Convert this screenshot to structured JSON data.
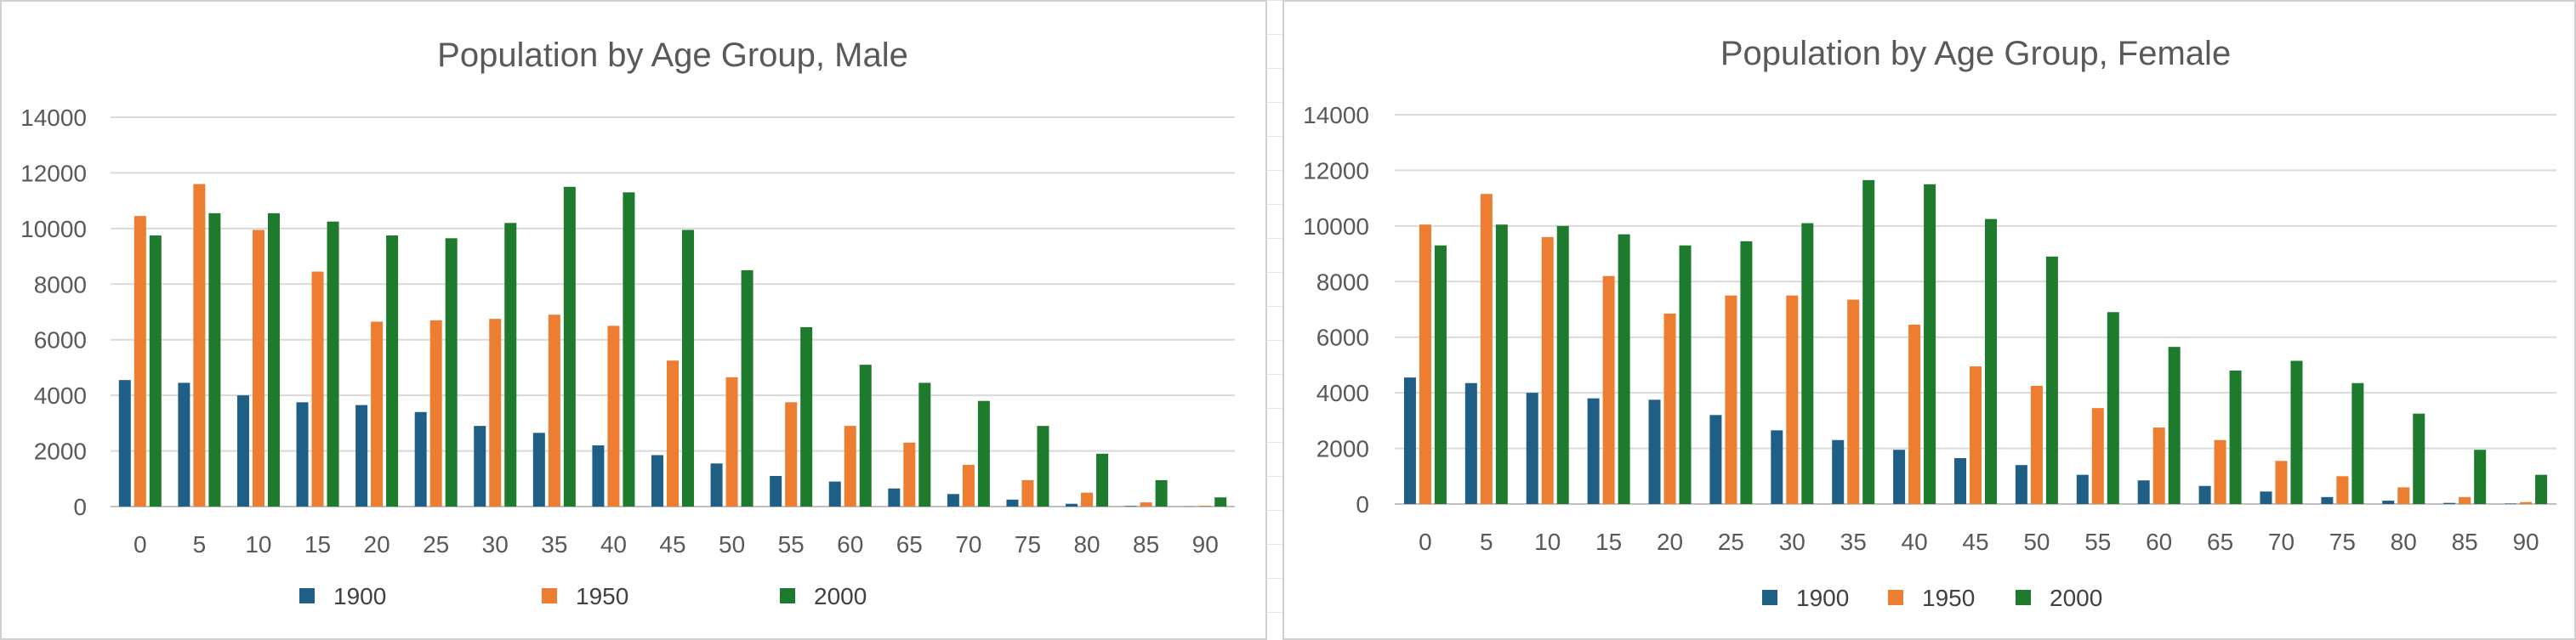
{
  "colors": {
    "1900": "#1f5f85",
    "1950": "#ed7d31",
    "2000": "#1e7a2d",
    "grid": "#d9d9d9",
    "text": "#595959"
  },
  "chart_data": [
    {
      "type": "bar",
      "title": "Population by Age Group, Male",
      "xlabel": "",
      "ylabel": "",
      "ylim": [
        0,
        14000
      ],
      "yticks": [
        0,
        2000,
        4000,
        6000,
        8000,
        10000,
        12000,
        14000
      ],
      "grid": true,
      "legend": "bottom",
      "categories": [
        "0",
        "5",
        "10",
        "15",
        "20",
        "25",
        "30",
        "35",
        "40",
        "45",
        "50",
        "55",
        "60",
        "65",
        "70",
        "75",
        "80",
        "85",
        "90"
      ],
      "series": [
        {
          "name": "1900",
          "values": [
            4550,
            4450,
            4000,
            3750,
            3650,
            3400,
            2900,
            2650,
            2200,
            1850,
            1550,
            1100,
            900,
            650,
            450,
            250,
            100,
            20,
            5
          ]
        },
        {
          "name": "1950",
          "values": [
            10450,
            11600,
            9950,
            8450,
            6650,
            6700,
            6750,
            6900,
            6500,
            5250,
            4650,
            3750,
            2900,
            2300,
            1500,
            950,
            500,
            150,
            30
          ]
        },
        {
          "name": "2000",
          "values": [
            9750,
            10550,
            10550,
            10250,
            9750,
            9650,
            10200,
            11500,
            11300,
            9950,
            8500,
            6450,
            5100,
            4450,
            3800,
            2900,
            1900,
            950,
            330
          ]
        }
      ]
    },
    {
      "type": "bar",
      "title": "Population by Age Group, Female",
      "xlabel": "",
      "ylabel": "",
      "ylim": [
        0,
        14000
      ],
      "yticks": [
        0,
        2000,
        4000,
        6000,
        8000,
        10000,
        12000,
        14000
      ],
      "grid": true,
      "legend": "bottom",
      "categories": [
        "0",
        "5",
        "10",
        "15",
        "20",
        "25",
        "30",
        "35",
        "40",
        "45",
        "50",
        "55",
        "60",
        "65",
        "70",
        "75",
        "80",
        "85",
        "90"
      ],
      "series": [
        {
          "name": "1900",
          "values": [
            4550,
            4350,
            4000,
            3800,
            3750,
            3200,
            2650,
            2300,
            1950,
            1650,
            1400,
            1050,
            850,
            650,
            450,
            250,
            120,
            40,
            15
          ]
        },
        {
          "name": "1950",
          "values": [
            10050,
            11150,
            9600,
            8200,
            6850,
            7500,
            7500,
            7350,
            6450,
            4950,
            4250,
            3450,
            2750,
            2300,
            1550,
            1000,
            600,
            250,
            70
          ]
        },
        {
          "name": "2000",
          "values": [
            9300,
            10050,
            10000,
            9700,
            9300,
            9450,
            10100,
            11650,
            11500,
            10250,
            8900,
            6900,
            5650,
            4800,
            5150,
            4350,
            3250,
            1950,
            1050
          ]
        }
      ]
    }
  ]
}
